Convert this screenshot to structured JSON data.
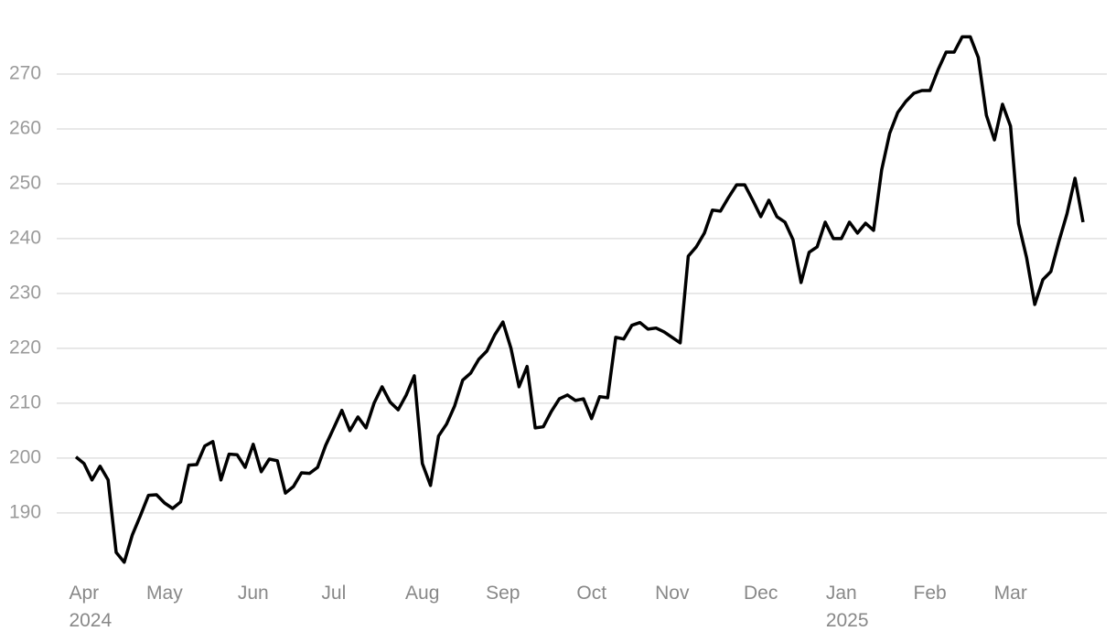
{
  "chart_data": {
    "type": "line",
    "categories": [
      null,
      "Apr\n2024",
      null,
      null,
      null,
      null,
      null,
      null,
      null,
      null,
      null,
      "May",
      null,
      null,
      null,
      null,
      null,
      null,
      null,
      null,
      null,
      null,
      "Jun",
      null,
      null,
      null,
      null,
      null,
      null,
      null,
      null,
      null,
      "Jul",
      null,
      null,
      null,
      null,
      null,
      null,
      null,
      null,
      null,
      null,
      "Aug",
      null,
      null,
      null,
      null,
      null,
      null,
      null,
      null,
      null,
      "Sep",
      null,
      null,
      null,
      null,
      null,
      null,
      null,
      null,
      null,
      null,
      "Oct",
      null,
      null,
      null,
      null,
      null,
      null,
      null,
      null,
      null,
      "Nov",
      null,
      null,
      null,
      null,
      null,
      null,
      null,
      null,
      null,
      null,
      "Dec",
      null,
      null,
      null,
      null,
      null,
      null,
      null,
      null,
      null,
      "Jan\n2025",
      null,
      null,
      null,
      null,
      null,
      null,
      null,
      null,
      null,
      null,
      "Feb",
      null,
      null,
      null,
      null,
      null,
      null,
      null,
      null,
      null,
      "Mar",
      null,
      null,
      null,
      null,
      null,
      null,
      null,
      null,
      null
    ],
    "series": [
      {
        "color": "#000000",
        "values": [
          200.2,
          199,
          196,
          198.5,
          196,
          182.8,
          181,
          186,
          189.5,
          193.2,
          193.3,
          191.8,
          190.8,
          192,
          198.7,
          198.8,
          202.2,
          203,
          196,
          200.7,
          200.6,
          198.3,
          202.5,
          197.5,
          199.8,
          199.5,
          193.6,
          194.8,
          197.3,
          197.2,
          198.3,
          202.3,
          205.5,
          208.7,
          205,
          207.5,
          205.5,
          210,
          213,
          210.2,
          208.8,
          211.5,
          215,
          199,
          195,
          204,
          206.2,
          209.5,
          214.2,
          215.5,
          218,
          219.5,
          222.5,
          224.8,
          220,
          213,
          216.7,
          205.5,
          205.7,
          208.5,
          210.8,
          211.5,
          210.5,
          210.8,
          207.2,
          211.2,
          211,
          222,
          221.7,
          224.2,
          224.7,
          223.5,
          223.7,
          223,
          222,
          221,
          236.8,
          238.5,
          241,
          245.2,
          245,
          247.5,
          249.8,
          249.8,
          247,
          244,
          247,
          244,
          243,
          239.8,
          232,
          237.5,
          238.5,
          243,
          240,
          240,
          243,
          241,
          242.8,
          241.5,
          252.5,
          259.2,
          263,
          265,
          266.5,
          267,
          267,
          270.8,
          274,
          274,
          276.8,
          276.8,
          273,
          262.5,
          258,
          264.5,
          260.5,
          242.7,
          236.5,
          228,
          232.5,
          234,
          239.5,
          244.5,
          251,
          243
        ]
      }
    ],
    "ylim": [
      179.3,
      281
    ],
    "yticks": [
      190,
      200,
      210,
      220,
      230,
      240,
      250,
      260,
      270
    ],
    "grid": true
  }
}
